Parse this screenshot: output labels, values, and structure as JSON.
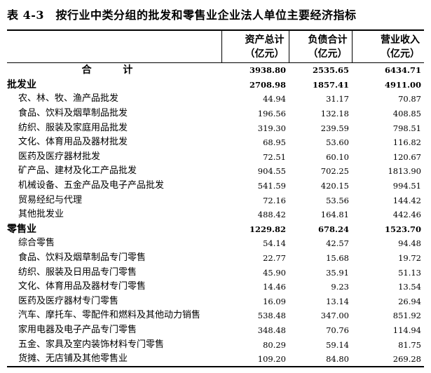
{
  "title": "表 4-3　按行业中类分组的批发和零售业企业法人单位主要经济指标",
  "columns": [
    {
      "name": "资产总计",
      "unit": "（亿元）"
    },
    {
      "name": "负债合计",
      "unit": "（亿元）"
    },
    {
      "name": "营业收入",
      "unit": "（亿元）"
    }
  ],
  "rows": [
    {
      "kind": "total",
      "label": "合 计",
      "values": [
        "3938.80",
        "2535.65",
        "6434.71"
      ]
    },
    {
      "kind": "cat",
      "label": "批发业",
      "values": [
        "2708.98",
        "1857.41",
        "4911.00"
      ]
    },
    {
      "kind": "item",
      "label": "农、林、牧、渔产品批发",
      "values": [
        "44.94",
        "31.17",
        "70.87"
      ]
    },
    {
      "kind": "item",
      "label": "食品、饮料及烟草制品批发",
      "values": [
        "196.56",
        "132.18",
        "408.85"
      ]
    },
    {
      "kind": "item",
      "label": "纺织、服装及家庭用品批发",
      "values": [
        "319.30",
        "239.59",
        "798.51"
      ]
    },
    {
      "kind": "item",
      "label": "文化、体育用品及器材批发",
      "values": [
        "68.95",
        "53.60",
        "116.82"
      ]
    },
    {
      "kind": "item",
      "label": "医药及医疗器材批发",
      "values": [
        "72.51",
        "60.10",
        "120.67"
      ]
    },
    {
      "kind": "item",
      "label": "矿产品、建材及化工产品批发",
      "values": [
        "904.55",
        "702.25",
        "1813.90"
      ]
    },
    {
      "kind": "item",
      "label": "机械设备、五金产品及电子产品批发",
      "values": [
        "541.59",
        "420.15",
        "994.51"
      ]
    },
    {
      "kind": "item",
      "label": "贸易经纪与代理",
      "values": [
        "72.16",
        "53.56",
        "144.42"
      ]
    },
    {
      "kind": "item",
      "label": "其他批发业",
      "values": [
        "488.42",
        "164.81",
        "442.46"
      ]
    },
    {
      "kind": "cat",
      "label": "零售业",
      "values": [
        "1229.82",
        "678.24",
        "1523.70"
      ]
    },
    {
      "kind": "item",
      "label": "综合零售",
      "values": [
        "54.14",
        "42.57",
        "94.48"
      ]
    },
    {
      "kind": "item",
      "label": "食品、饮料及烟草制品专门零售",
      "values": [
        "22.77",
        "15.68",
        "19.72"
      ]
    },
    {
      "kind": "item",
      "label": "纺织、服装及日用品专门零售",
      "values": [
        "45.90",
        "35.91",
        "51.13"
      ]
    },
    {
      "kind": "item",
      "label": "文化、体育用品及器材专门零售",
      "values": [
        "14.46",
        "9.23",
        "13.54"
      ]
    },
    {
      "kind": "item",
      "label": "医药及医疗器材专门零售",
      "values": [
        "16.09",
        "13.14",
        "26.94"
      ]
    },
    {
      "kind": "item",
      "label": "汽车、摩托车、零配件和燃料及其他动力销售",
      "values": [
        "538.48",
        "347.00",
        "851.92"
      ]
    },
    {
      "kind": "item",
      "label": "家用电器及电子产品专门零售",
      "values": [
        "348.48",
        "70.76",
        "114.94"
      ]
    },
    {
      "kind": "item",
      "label": "五金、家具及室内装饰材料专门零售",
      "values": [
        "80.29",
        "59.14",
        "81.75"
      ]
    },
    {
      "kind": "item",
      "label": "货摊、无店铺及其他零售业",
      "values": [
        "109.20",
        "84.80",
        "269.28"
      ]
    }
  ]
}
